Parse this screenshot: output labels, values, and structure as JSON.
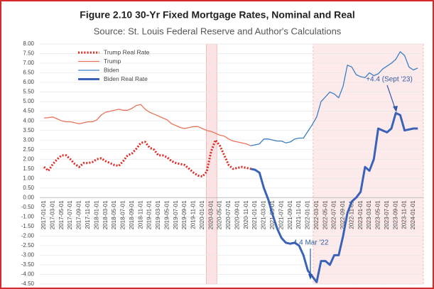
{
  "chart_data": {
    "type": "line",
    "title": "Figure 2.10 30-Yr Fixed Mortgage Rates, Nominal and Real",
    "subtitle": "Source: St. Louis Federal Reserve and Author's Calculations",
    "categories": [
      "2017-01-01",
      null,
      "2017-03-01",
      null,
      "2017-05-01",
      null,
      "2017-07-01",
      null,
      "2017-09-01",
      null,
      "2017-11-01",
      null,
      "2018-01-01",
      null,
      "2018-03-01",
      null,
      "2018-05-01",
      null,
      "2018-07-01",
      null,
      "2018-09-01",
      null,
      "2018-11-01",
      null,
      "2019-01-01",
      null,
      "2019-03-01",
      null,
      "2019-05-01",
      null,
      "2019-07-01",
      null,
      "2019-09-01",
      null,
      "2019-11-01",
      null,
      "2020-01-01",
      null,
      "2020-03-01",
      null,
      "2020-05-01",
      null,
      "2020-07-01",
      null,
      "2020-09-01",
      null,
      "2020-11-01",
      null,
      "2021-01-01",
      null,
      "2021-03-01",
      null,
      "2021-05-01",
      null,
      "2021-07-01",
      null,
      "2021-09-01",
      null,
      "2021-11-01",
      null,
      "2022-01-01",
      null,
      "2022-03-01",
      null,
      "2022-05-01",
      null,
      "2022-07-01",
      null,
      "2022-09-01",
      null,
      "2022-11-01",
      null,
      "2023-01-01",
      null,
      "2023-03-01",
      null,
      "2023-05-01",
      null,
      "2023-07-01",
      null,
      "2023-09-01",
      null,
      "2023-11-01",
      null,
      "2024-01-01",
      null
    ],
    "series": [
      {
        "name": "Trump Real Rate",
        "color": "#e0261f",
        "style": "dotted",
        "width": "thick",
        "values": [
          1.6,
          1.4,
          1.75,
          2.0,
          2.2,
          2.2,
          2.0,
          1.75,
          1.6,
          1.8,
          1.8,
          1.85,
          2.0,
          2.05,
          1.9,
          1.8,
          1.7,
          1.65,
          1.9,
          2.2,
          2.3,
          2.55,
          2.85,
          2.9,
          2.6,
          2.5,
          2.2,
          2.2,
          2.1,
          1.9,
          1.8,
          1.75,
          1.7,
          1.5,
          1.3,
          1.15,
          1.1,
          1.35,
          2.4,
          3.0,
          2.7,
          2.2,
          1.7,
          1.5,
          1.55,
          1.6,
          1.55,
          1.5,
          null,
          null,
          null,
          null,
          null,
          null,
          null,
          null,
          null,
          null,
          null,
          null,
          null,
          null,
          null,
          null,
          null,
          null,
          null,
          null,
          null,
          null,
          null,
          null,
          null,
          null,
          null,
          null,
          null,
          null,
          null,
          null,
          null,
          null,
          null,
          null,
          null,
          null
        ]
      },
      {
        "name": "Trump",
        "color": "#e8735a",
        "style": "solid",
        "width": "thin",
        "values": [
          4.15,
          4.17,
          4.2,
          4.1,
          4.0,
          3.95,
          3.95,
          3.9,
          3.85,
          3.9,
          3.95,
          3.95,
          4.05,
          4.3,
          4.45,
          4.5,
          4.55,
          4.6,
          4.55,
          4.55,
          4.65,
          4.8,
          4.85,
          4.6,
          4.45,
          4.35,
          4.25,
          4.15,
          4.05,
          3.85,
          3.75,
          3.65,
          3.6,
          3.65,
          3.7,
          3.7,
          3.6,
          3.5,
          3.45,
          3.35,
          3.25,
          3.2,
          3.05,
          2.95,
          2.9,
          2.85,
          2.8,
          2.7,
          null,
          null,
          null,
          null,
          null,
          null,
          null,
          null,
          null,
          null,
          null,
          null,
          null,
          null,
          null,
          null,
          null,
          null,
          null,
          null,
          null,
          null,
          null,
          null,
          null,
          null,
          null,
          null,
          null,
          null,
          null,
          null,
          null,
          null,
          null,
          null,
          null,
          null
        ]
      },
      {
        "name": "Biden",
        "color": "#3b7fc4",
        "style": "solid",
        "width": "thin",
        "values": [
          null,
          null,
          null,
          null,
          null,
          null,
          null,
          null,
          null,
          null,
          null,
          null,
          null,
          null,
          null,
          null,
          null,
          null,
          null,
          null,
          null,
          null,
          null,
          null,
          null,
          null,
          null,
          null,
          null,
          null,
          null,
          null,
          null,
          null,
          null,
          null,
          null,
          null,
          null,
          null,
          null,
          null,
          null,
          null,
          null,
          null,
          null,
          2.7,
          2.75,
          2.8,
          3.05,
          3.05,
          3.0,
          2.95,
          2.95,
          2.85,
          2.9,
          3.05,
          3.1,
          3.1,
          3.45,
          3.8,
          4.2,
          5.0,
          5.25,
          5.5,
          5.4,
          5.2,
          5.8,
          6.9,
          6.8,
          6.4,
          6.3,
          6.25,
          6.5,
          6.35,
          6.45,
          6.7,
          6.85,
          7.0,
          7.2,
          7.6,
          7.4,
          6.8,
          6.65,
          6.75
        ]
      },
      {
        "name": "Biden Real Rate",
        "color": "#3a63b8",
        "style": "solid",
        "width": "thick",
        "values": [
          null,
          null,
          null,
          null,
          null,
          null,
          null,
          null,
          null,
          null,
          null,
          null,
          null,
          null,
          null,
          null,
          null,
          null,
          null,
          null,
          null,
          null,
          null,
          null,
          null,
          null,
          null,
          null,
          null,
          null,
          null,
          null,
          null,
          null,
          null,
          null,
          null,
          null,
          null,
          null,
          null,
          null,
          null,
          null,
          null,
          null,
          null,
          1.5,
          1.45,
          1.3,
          0.5,
          -0.1,
          -0.9,
          -1.6,
          -2.1,
          -2.35,
          -2.4,
          -2.35,
          -2.5,
          -3.0,
          -3.8,
          -4.1,
          -4.4,
          -3.3,
          -3.3,
          -3.5,
          -3.0,
          -3.0,
          -2.0,
          -0.8,
          -0.2,
          0.0,
          0.3,
          1.6,
          1.4,
          2.0,
          3.6,
          3.5,
          3.4,
          3.6,
          4.4,
          4.3,
          3.5,
          3.55,
          3.6,
          3.6
        ]
      }
    ],
    "ylim": [
      -4.5,
      8.0
    ],
    "yticks": [
      {
        "value": -4.5,
        "label": "-4.50"
      },
      {
        "value": -4.0,
        "label": "-4.00"
      },
      {
        "value": -3.5,
        "label": "-3.50"
      },
      {
        "value": -3.0,
        "label": "-3.00"
      },
      {
        "value": -2.5,
        "label": "-2.50"
      },
      {
        "value": -2.0,
        "label": "-2.00"
      },
      {
        "value": -1.5,
        "label": "-1.50"
      },
      {
        "value": -1.0,
        "label": "-1.00"
      },
      {
        "value": -0.5,
        "label": "-0.50"
      },
      {
        "value": 0,
        "label": "0.00"
      },
      {
        "value": 0.5,
        "label": "0.50"
      },
      {
        "value": 1.0,
        "label": "1.00"
      },
      {
        "value": 1.5,
        "label": "1.50"
      },
      {
        "value": 2.0,
        "label": "2.00"
      },
      {
        "value": 2.5,
        "label": "2.50"
      },
      {
        "value": 3.0,
        "label": "3.00"
      },
      {
        "value": 3.5,
        "label": "3.50"
      },
      {
        "value": 4.0,
        "label": "4.00"
      },
      {
        "value": 4.5,
        "label": "4.50"
      },
      {
        "value": 5.0,
        "label": "5.00"
      },
      {
        "value": 5.5,
        "label": "5.50"
      },
      {
        "value": 6.0,
        "label": "6.00"
      },
      {
        "value": 6.5,
        "label": "6.50"
      },
      {
        "value": 7.0,
        "label": "7.00"
      },
      {
        "value": 7.5,
        "label": "7.50"
      },
      {
        "value": 8.0,
        "label": "8.00"
      }
    ],
    "grid": true,
    "legend": "top-left",
    "annotations": [
      {
        "text": "+4.4 (Sept '23)"
      },
      {
        "text": "-4.4 Mar '22"
      }
    ]
  }
}
